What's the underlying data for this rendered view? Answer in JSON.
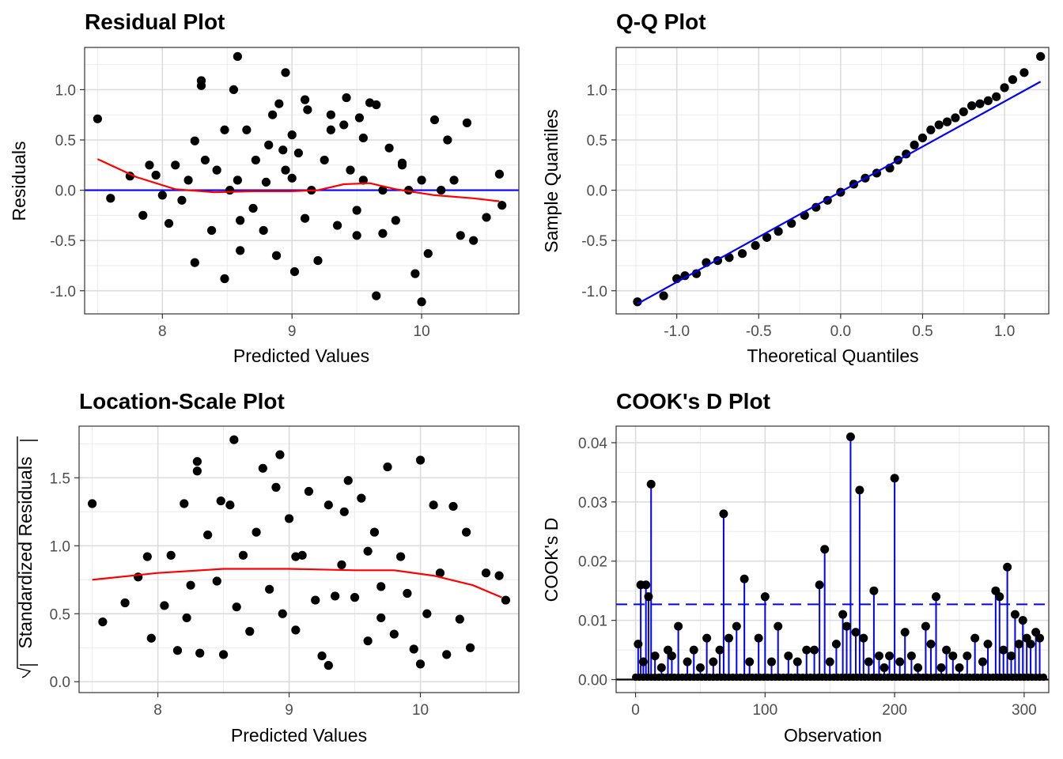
{
  "chart_data": [
    {
      "type": "scatter",
      "title": "Residual Plot",
      "xlabel": "Predicted Values",
      "ylabel": "Residuals",
      "xlim": [
        7.4,
        10.75
      ],
      "ylim": [
        -1.23,
        1.42
      ],
      "xticks": [
        8,
        9,
        10
      ],
      "yticks": [
        -1.0,
        -0.5,
        0.0,
        0.5,
        1.0
      ],
      "xtick_labels": [
        "8",
        "9",
        "10"
      ],
      "ytick_labels": [
        "-1.0",
        "-0.5",
        "0.0",
        "0.5",
        "1.0"
      ],
      "grid": true,
      "hline": {
        "y": 0,
        "color": "#0000ff"
      },
      "smooth": {
        "color": "#ff0000",
        "x": [
          7.5,
          7.8,
          8.1,
          8.4,
          8.7,
          9.0,
          9.2,
          9.4,
          9.6,
          9.8,
          10.1,
          10.4,
          10.6
        ],
        "y": [
          0.31,
          0.13,
          0.01,
          -0.02,
          -0.01,
          -0.01,
          0.0,
          0.06,
          0.07,
          0.01,
          -0.05,
          -0.08,
          -0.11
        ]
      },
      "points": {
        "color": "#000000",
        "x": [
          7.5,
          7.6,
          7.75,
          7.85,
          7.9,
          7.95,
          8.0,
          8.05,
          8.1,
          8.15,
          8.2,
          8.25,
          8.3,
          8.33,
          8.38,
          8.42,
          8.48,
          8.52,
          8.55,
          8.58,
          8.6,
          8.65,
          8.7,
          8.72,
          8.78,
          8.82,
          8.85,
          8.88,
          8.9,
          8.93,
          8.95,
          9.0,
          9.02,
          9.05,
          9.1,
          9.12,
          9.15,
          9.2,
          9.25,
          9.3,
          9.35,
          9.4,
          9.42,
          9.45,
          9.5,
          9.52,
          9.55,
          9.6,
          9.65,
          9.7,
          9.75,
          9.8,
          9.85,
          9.9,
          9.95,
          10.0,
          10.05,
          10.1,
          10.15,
          10.2,
          10.25,
          10.3,
          10.35,
          10.4,
          10.5,
          10.6,
          10.62,
          8.3,
          8.58,
          8.95,
          9.1,
          9.55,
          9.65,
          10.0,
          8.48,
          8.8,
          9.5,
          8.6,
          9.3,
          9.85,
          9.0,
          8.25,
          9.7
        ],
        "y": [
          0.71,
          -0.08,
          0.14,
          -0.25,
          0.25,
          0.15,
          -0.05,
          -0.33,
          0.25,
          -0.1,
          0.1,
          0.49,
          1.09,
          0.3,
          -0.4,
          0.2,
          -0.88,
          0.0,
          1.0,
          0.1,
          -0.3,
          0.6,
          -0.18,
          0.3,
          -0.4,
          0.45,
          0.75,
          -0.65,
          0.86,
          0.4,
          0.2,
          0.12,
          -0.81,
          0.37,
          -0.28,
          0.8,
          0.0,
          -0.7,
          0.3,
          0.6,
          -0.35,
          0.65,
          0.92,
          0.2,
          -0.45,
          0.72,
          0.1,
          0.87,
          -1.05,
          0.0,
          0.42,
          -0.3,
          0.25,
          0.0,
          -0.83,
          0.1,
          -0.63,
          0.7,
          0.0,
          0.5,
          0.1,
          -0.45,
          0.67,
          -0.5,
          -0.27,
          0.16,
          -0.15,
          1.04,
          1.33,
          1.17,
          0.9,
          0.52,
          0.85,
          -1.11,
          0.6,
          0.08,
          -0.2,
          -0.6,
          0.75,
          0.27,
          0.55,
          -0.72,
          -0.43
        ]
      }
    },
    {
      "type": "scatter",
      "title": "Q-Q Plot",
      "xlabel": "Theoretical Quantiles",
      "ylabel": "Sample Quantiles",
      "xlim": [
        -1.37,
        1.27
      ],
      "ylim": [
        -1.23,
        1.42
      ],
      "xticks": [
        -1.0,
        -0.5,
        0.0,
        0.5,
        1.0
      ],
      "yticks": [
        -1.0,
        -0.5,
        0.0,
        0.5,
        1.0
      ],
      "xtick_labels": [
        "-1.0",
        "-0.5",
        "0.0",
        "0.5",
        "1.0"
      ],
      "ytick_labels": [
        "-1.0",
        "-0.5",
        "0.0",
        "0.5",
        "1.0"
      ],
      "grid": true,
      "ref_line": {
        "color": "#0000ff",
        "x": [
          -1.24,
          1.22
        ],
        "y": [
          -1.13,
          1.08
        ]
      },
      "points": {
        "color": "#000000",
        "x": [
          -1.24,
          -1.08,
          -1.0,
          -0.95,
          -0.88,
          -0.82,
          -0.75,
          -0.68,
          -0.6,
          -0.52,
          -0.45,
          -0.38,
          -0.3,
          -0.22,
          -0.15,
          -0.08,
          0.0,
          0.08,
          0.15,
          0.22,
          0.3,
          0.35,
          0.4,
          0.45,
          0.5,
          0.55,
          0.6,
          0.65,
          0.7,
          0.75,
          0.8,
          0.85,
          0.9,
          0.95,
          1.0,
          1.05,
          1.12,
          1.22
        ],
        "y": [
          -1.11,
          -1.05,
          -0.88,
          -0.85,
          -0.83,
          -0.72,
          -0.7,
          -0.67,
          -0.63,
          -0.55,
          -0.47,
          -0.41,
          -0.33,
          -0.25,
          -0.17,
          -0.1,
          -0.02,
          0.06,
          0.12,
          0.17,
          0.22,
          0.3,
          0.36,
          0.45,
          0.52,
          0.6,
          0.65,
          0.68,
          0.72,
          0.78,
          0.84,
          0.86,
          0.89,
          0.93,
          1.02,
          1.1,
          1.17,
          1.33
        ]
      }
    },
    {
      "type": "scatter",
      "title": "Location-Scale Plot",
      "xlabel": "Predicted Values",
      "ylabel": "Standardized Residuals",
      "xlim": [
        7.4,
        10.75
      ],
      "ylim": [
        -0.08,
        1.88
      ],
      "xticks": [
        8,
        9,
        10
      ],
      "yticks": [
        0.0,
        0.5,
        1.0,
        1.5
      ],
      "xtick_labels": [
        "8",
        "9",
        "10"
      ],
      "ytick_labels": [
        "0.0",
        "0.5",
        "1.0",
        "1.5"
      ],
      "grid": true,
      "smooth": {
        "color": "#ff0000",
        "x": [
          7.5,
          8.0,
          8.5,
          9.0,
          9.5,
          9.8,
          10.1,
          10.4,
          10.62
        ],
        "y": [
          0.75,
          0.8,
          0.83,
          0.83,
          0.82,
          0.82,
          0.78,
          0.71,
          0.62
        ]
      },
      "points": {
        "color": "#000000",
        "x": [
          7.5,
          7.58,
          7.75,
          7.85,
          7.92,
          7.95,
          8.05,
          8.1,
          8.15,
          8.2,
          8.25,
          8.3,
          8.32,
          8.38,
          8.45,
          8.5,
          8.55,
          8.6,
          8.65,
          8.7,
          8.75,
          8.8,
          8.85,
          8.9,
          8.95,
          9.0,
          9.05,
          9.1,
          9.15,
          9.2,
          9.25,
          9.3,
          9.35,
          9.4,
          9.45,
          9.5,
          9.55,
          9.6,
          9.65,
          9.7,
          9.75,
          9.8,
          9.85,
          9.9,
          9.95,
          10.0,
          10.05,
          10.1,
          10.15,
          10.2,
          10.25,
          10.3,
          10.35,
          10.38,
          10.5,
          10.6,
          10.65,
          8.3,
          8.58,
          8.93,
          9.42,
          9.7,
          10.0,
          8.48,
          9.05,
          9.3,
          8.22,
          9.6
        ],
        "y": [
          1.31,
          0.44,
          0.58,
          0.77,
          0.92,
          0.32,
          0.56,
          0.93,
          0.23,
          1.31,
          0.71,
          1.62,
          0.21,
          1.08,
          0.74,
          0.2,
          1.3,
          0.55,
          0.93,
          0.37,
          1.1,
          1.57,
          0.68,
          1.43,
          0.5,
          1.2,
          0.38,
          0.93,
          1.4,
          0.6,
          0.19,
          1.3,
          0.63,
          0.86,
          1.48,
          0.62,
          1.35,
          0.3,
          1.1,
          0.7,
          1.58,
          0.35,
          0.92,
          0.65,
          0.24,
          1.63,
          0.5,
          1.3,
          0.8,
          0.2,
          1.29,
          0.46,
          1.1,
          0.25,
          0.8,
          0.78,
          0.6,
          1.55,
          1.78,
          1.67,
          1.25,
          0.47,
          0.13,
          1.33,
          0.92,
          0.12,
          0.47,
          0.96
        ]
      }
    },
    {
      "type": "bar",
      "title": "COOK's D Plot",
      "xlabel": "Observation",
      "ylabel": "COOK's D",
      "xlim": [
        -15,
        319
      ],
      "ylim": [
        -0.0022,
        0.0428
      ],
      "xticks": [
        0,
        100,
        200,
        300
      ],
      "yticks": [
        0.0,
        0.01,
        0.02,
        0.03,
        0.04
      ],
      "xtick_labels": [
        "0",
        "100",
        "200",
        "300"
      ],
      "ytick_labels": [
        "0.00",
        "0.01",
        "0.02",
        "0.03",
        "0.04"
      ],
      "grid": true,
      "threshold": {
        "y": 0.0127,
        "color": "#0000ff",
        "style": "dashed"
      },
      "baseline": {
        "y": 0,
        "color": "#000000"
      },
      "stems": {
        "color": "#0000ff",
        "point_color": "#000000",
        "x": [
          2,
          4,
          6,
          8,
          10,
          12,
          15,
          20,
          25,
          28,
          33,
          40,
          45,
          50,
          55,
          60,
          65,
          68,
          72,
          78,
          84,
          88,
          95,
          100,
          105,
          110,
          118,
          125,
          132,
          138,
          142,
          146,
          150,
          155,
          160,
          163,
          166,
          170,
          173,
          176,
          180,
          184,
          188,
          192,
          196,
          200,
          204,
          208,
          213,
          218,
          224,
          228,
          232,
          236,
          240,
          245,
          250,
          256,
          262,
          268,
          272,
          278,
          281,
          284,
          287,
          290,
          293,
          296,
          299,
          302,
          305,
          309,
          312
        ],
        "y": [
          0.006,
          0.016,
          0.003,
          0.016,
          0.014,
          0.033,
          0.004,
          0.002,
          0.005,
          0.004,
          0.009,
          0.003,
          0.005,
          0.002,
          0.007,
          0.003,
          0.005,
          0.028,
          0.007,
          0.009,
          0.017,
          0.003,
          0.007,
          0.014,
          0.003,
          0.009,
          0.004,
          0.003,
          0.005,
          0.005,
          0.016,
          0.022,
          0.003,
          0.006,
          0.011,
          0.009,
          0.041,
          0.008,
          0.032,
          0.007,
          0.003,
          0.015,
          0.004,
          0.002,
          0.004,
          0.034,
          0.003,
          0.008,
          0.004,
          0.002,
          0.009,
          0.006,
          0.014,
          0.002,
          0.005,
          0.004,
          0.002,
          0.004,
          0.007,
          0.003,
          0.006,
          0.015,
          0.014,
          0.005,
          0.019,
          0.004,
          0.011,
          0.006,
          0.01,
          0.007,
          0.006,
          0.008,
          0.007
        ]
      }
    }
  ]
}
